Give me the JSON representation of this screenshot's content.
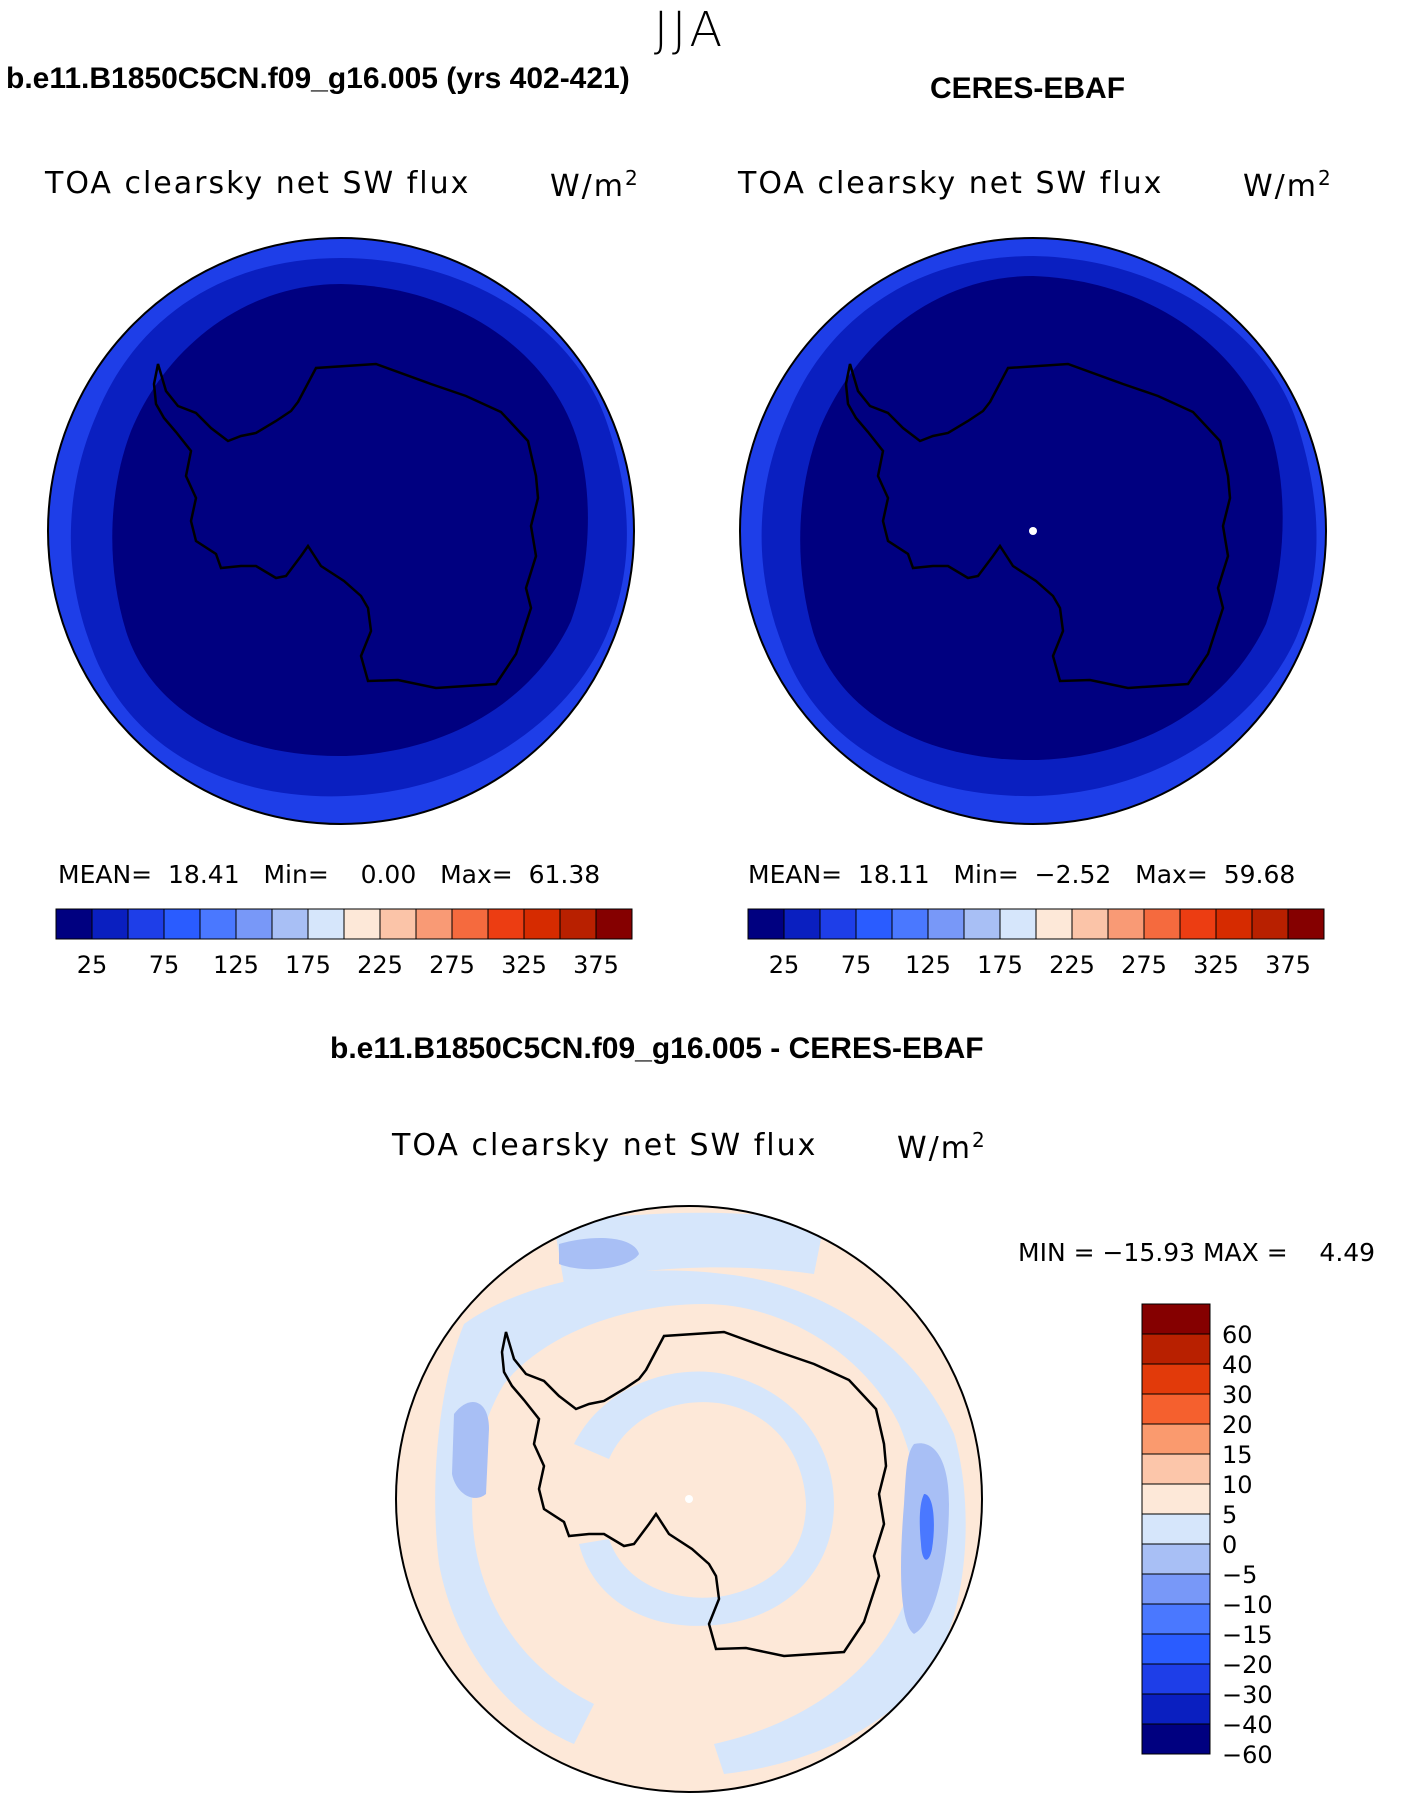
{
  "season": "JJA",
  "panels": [
    {
      "case_title": "b.e11.B1850C5CN.f09_g16.005 (yrs 402-421)",
      "field_title": "TOA clearsky net SW flux",
      "units_base": "W/m",
      "units_exp": "2",
      "stats": {
        "mean_label": "MEAN=",
        "mean": "18.41",
        "min_label": "Min=",
        "min": "0.00",
        "max_label": "Max=",
        "max": "61.38"
      },
      "colorbar_ticks": [
        "25",
        "75",
        "125",
        "175",
        "225",
        "275",
        "325",
        "375"
      ]
    },
    {
      "case_title": "CERES-EBAF",
      "field_title": "TOA clearsky net SW flux",
      "units_base": "W/m",
      "units_exp": "2",
      "stats": {
        "mean_label": "MEAN=",
        "mean": "18.11",
        "min_label": "Min=",
        "min": "−2.52",
        "max_label": "Max=",
        "max": "59.68"
      },
      "colorbar_ticks": [
        "25",
        "75",
        "125",
        "175",
        "225",
        "275",
        "325",
        "375"
      ]
    }
  ],
  "difference": {
    "title": "b.e11.B1850C5CN.f09_g16.005 - CERES-EBAF",
    "field_title": "TOA clearsky net SW flux",
    "units_base": "W/m",
    "units_exp": "2",
    "minmax_text": "MIN = −15.93 MAX =    4.49",
    "colorbar_labels": [
      "60",
      "40",
      "30",
      "20",
      "15",
      "10",
      "5",
      "0",
      "−5",
      "−10",
      "−15",
      "−20",
      "−30",
      "−40",
      "−60"
    ]
  },
  "colors": {
    "abs_scale": [
      "#000080",
      "#0a1fc0",
      "#1e3ee8",
      "#2a5cff",
      "#4a78ff",
      "#7898f8",
      "#a8bff5",
      "#d6e6fb",
      "#fde8d8",
      "#fbc4a8",
      "#f99a75",
      "#f56a3e",
      "#ec3d12",
      "#d62b00",
      "#b82000",
      "#850000"
    ],
    "diff_scale": [
      "#850000",
      "#b82000",
      "#e23a0a",
      "#f5602e",
      "#fa9a6e",
      "#fcc6aa",
      "#fde8d8",
      "#d6e6fb",
      "#a8bff5",
      "#7898f8",
      "#4a78ff",
      "#2a5cff",
      "#1e3ee8",
      "#0a1fc0",
      "#000080"
    ],
    "map_inner": "#000080",
    "map_mid": "#0a1fc0",
    "map_outer": "#1e3ee8",
    "diff_pos": "#fde8d8",
    "diff_neg1": "#d6e6fb",
    "diff_neg2": "#a8bff5",
    "diff_neg3": "#4a78ff"
  }
}
